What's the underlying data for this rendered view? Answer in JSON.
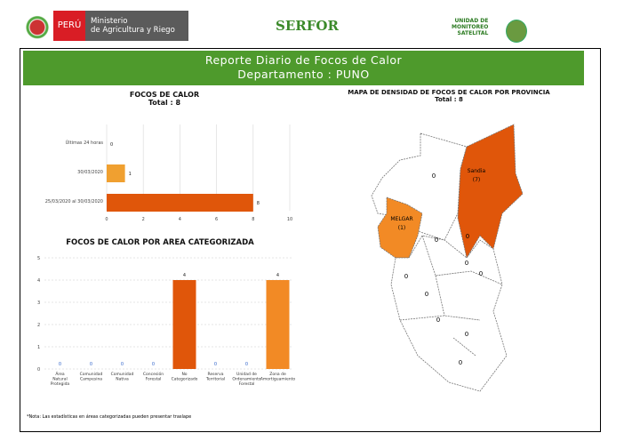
{
  "header": {
    "peru_label": "PERÚ",
    "ministry_line1": "Ministerio",
    "ministry_line2": "de Agricultura y Riego",
    "serfor": "SERFOR",
    "unit_line1": "UNIDAD DE",
    "unit_line2": "MONITOREO",
    "unit_line3": "SATELITAL"
  },
  "banner": {
    "title": "Reporte Diario de Focos de Calor",
    "subtitle": "Departamento : PUNO"
  },
  "chart_data": [
    {
      "type": "bar",
      "orientation": "horizontal",
      "title": "FOCOS DE CALOR",
      "subtitle": "Total : 8",
      "categories": [
        "Últimas 24 horas",
        "30/03/2020",
        "25/03/2020 al 30/03/2020"
      ],
      "values": [
        0,
        1,
        8
      ],
      "colors": [
        "#f0a030",
        "#f0a030",
        "#e0560a"
      ],
      "xlim": [
        0,
        10
      ],
      "xticks": [
        0,
        2,
        4,
        6,
        8,
        10
      ]
    },
    {
      "type": "bar",
      "title": "FOCOS DE CALOR POR AREA CATEGORIZADA",
      "categories": [
        "Área Natural Protegida",
        "Comunidad Campesina",
        "Comunidad Nativa",
        "Concesión Forestal",
        "No Categorizado",
        "Reserva Territorial",
        "Unidad de Ordenamiento Forestal",
        "Zona de Amortiguamiento"
      ],
      "values": [
        0,
        0,
        0,
        0,
        4,
        0,
        0,
        4
      ],
      "colors": [
        "#e0560a",
        "#e0560a",
        "#e0560a",
        "#e0560a",
        "#e0560a",
        "#e0560a",
        "#e0560a",
        "#f28a25"
      ],
      "ylim": [
        0,
        5
      ],
      "yticks": [
        0,
        1,
        2,
        3,
        4,
        5
      ]
    }
  ],
  "map": {
    "title": "MAPA DE DENSIDAD DE FOCOS DE CALOR POR PROVINCIA",
    "subtitle": "Total : 8",
    "provinces": [
      {
        "name": "Sandia",
        "count": "(7)"
      },
      {
        "name": "MELGAR",
        "count": "(1)"
      }
    ],
    "zero_label": "0"
  },
  "note": "*Nota: Las estadísticas en áreas categorizadas pueden presentar traslape"
}
